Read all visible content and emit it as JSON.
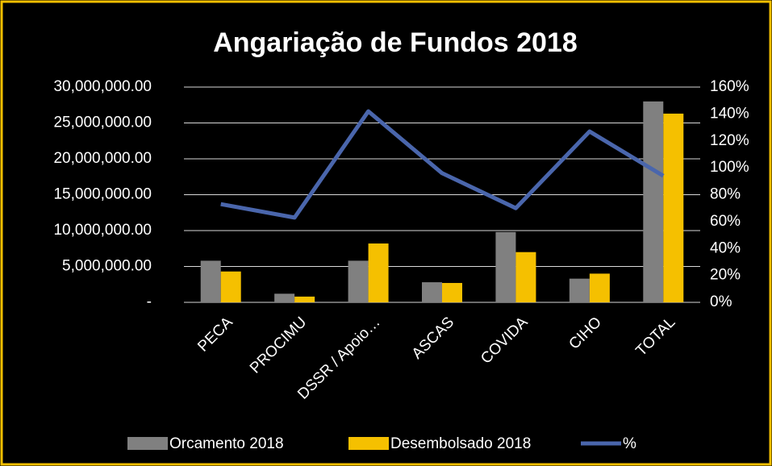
{
  "chart_data": {
    "type": "bar",
    "title": "Angariação de Fundos 2018",
    "categories": [
      "PECA",
      "PROCIMU",
      "DSSR / Apoio…",
      "ASCAS",
      "COVIDA",
      "CIHO",
      "TOTAL"
    ],
    "series": [
      {
        "name": "Orcamento 2018",
        "color": "#808080",
        "values": [
          5800000,
          1200000,
          5800000,
          2800000,
          9800000,
          3300000,
          28000000
        ]
      },
      {
        "name": "Desembolsado 2018",
        "color": "#f5c000",
        "values": [
          4300000,
          800000,
          8200000,
          2700000,
          7000000,
          4000000,
          26300000
        ]
      },
      {
        "name": "%",
        "color": "#4a66ac",
        "type": "line",
        "axis": "y2",
        "values": [
          73,
          63,
          142,
          96,
          70,
          127,
          94
        ]
      }
    ],
    "ylim": [
      0,
      30000000
    ],
    "yticks": [
      {
        "value": 0,
        "label": "-"
      },
      {
        "value": 5000000,
        "label": "5,000,000.00"
      },
      {
        "value": 10000000,
        "label": "10,000,000.00"
      },
      {
        "value": 15000000,
        "label": "15,000,000.00"
      },
      {
        "value": 20000000,
        "label": "20,000,000.00"
      },
      {
        "value": 25000000,
        "label": "25,000,000.00"
      },
      {
        "value": 30000000,
        "label": "30,000,000.00"
      }
    ],
    "y2lim": [
      0,
      160
    ],
    "y2ticks": [
      {
        "value": 0,
        "label": "0%"
      },
      {
        "value": 20,
        "label": "20%"
      },
      {
        "value": 40,
        "label": "40%"
      },
      {
        "value": 60,
        "label": "60%"
      },
      {
        "value": 80,
        "label": "80%"
      },
      {
        "value": 100,
        "label": "100%"
      },
      {
        "value": 120,
        "label": "120%"
      },
      {
        "value": 140,
        "label": "140%"
      },
      {
        "value": 160,
        "label": "160%"
      }
    ],
    "grid": true,
    "legend": "bottom"
  }
}
